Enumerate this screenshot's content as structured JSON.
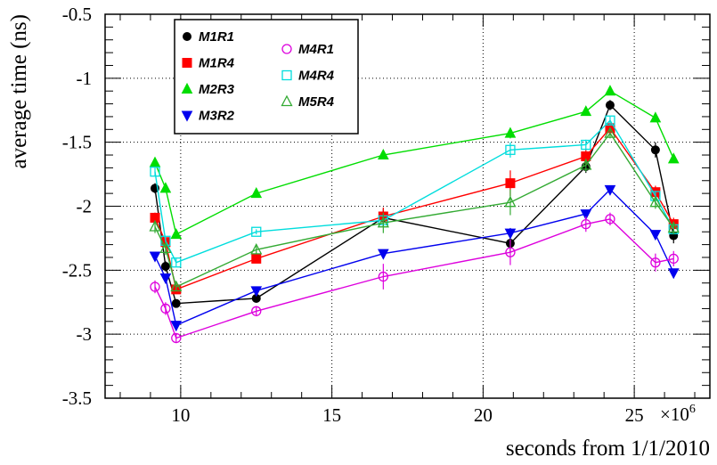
{
  "chart_data": {
    "type": "line",
    "title": "",
    "xlabel": "seconds from 1/1/2010",
    "ylabel": "average time (ns)",
    "x_exponent_label": "×10",
    "x_exponent_power": "6",
    "x_scale": 1000000,
    "xlim": [
      7500000,
      27500000
    ],
    "ylim": [
      -3.5,
      -0.5
    ],
    "x_ticks": [
      10,
      15,
      20,
      25
    ],
    "y_ticks": [
      -3.5,
      -3,
      -2.5,
      -2,
      -1.5,
      -1,
      -0.5
    ],
    "y_tick_labels": [
      "-3.5",
      "-3",
      "-2.5",
      "-2",
      "-1.5",
      "-1",
      "-0.5"
    ],
    "grid": true,
    "x": [
      9150000,
      9500000,
      9850000,
      12500000,
      16700000,
      20900000,
      23400000,
      24200000,
      25700000,
      26300000
    ],
    "series": [
      {
        "name": "M1R1",
        "color": "#000000",
        "marker": "circle-filled",
        "values": [
          -1.86,
          -2.47,
          -2.76,
          -2.72,
          -2.09,
          -2.29,
          -1.69,
          -1.21,
          -1.56,
          -2.23
        ],
        "errors": [
          0.04,
          0.04,
          0.03,
          0.03,
          0.07,
          0.07,
          0.05,
          0.04,
          0.06,
          0.06
        ]
      },
      {
        "name": "M1R4",
        "color": "#ff0000",
        "marker": "square-filled",
        "values": [
          -2.09,
          -2.28,
          -2.65,
          -2.41,
          -2.08,
          -1.82,
          -1.61,
          -1.39,
          -1.89,
          -2.14
        ],
        "errors": [
          0.04,
          0.04,
          0.03,
          0.03,
          0.07,
          0.1,
          0.06,
          0.05,
          0.05,
          0.05
        ]
      },
      {
        "name": "M2R3",
        "color": "#00dd00",
        "marker": "triangle-up-filled",
        "values": [
          -1.66,
          -1.86,
          -2.22,
          -1.9,
          -1.6,
          -1.43,
          -1.26,
          -1.1,
          -1.31,
          -1.63
        ],
        "errors": [
          0.03,
          0.03,
          0.03,
          0.02,
          0.03,
          0.04,
          0.03,
          0.02,
          0.03,
          0.03
        ]
      },
      {
        "name": "M3R2",
        "color": "#0000ee",
        "marker": "triangle-down-filled",
        "values": [
          -2.39,
          -2.56,
          -2.93,
          -2.66,
          -2.37,
          -2.21,
          -2.06,
          -1.87,
          -2.22,
          -2.52
        ],
        "errors": [
          0.03,
          0.03,
          0.03,
          0.02,
          0.03,
          0.04,
          0.03,
          0.02,
          0.03,
          0.03
        ]
      },
      {
        "name": "M4R1",
        "color": "#dd00dd",
        "marker": "circle-open",
        "values": [
          -2.63,
          -2.8,
          -3.03,
          -2.82,
          -2.55,
          -2.36,
          -2.14,
          -2.1,
          -2.44,
          -2.41
        ],
        "errors": [
          0.05,
          0.05,
          0.04,
          0.04,
          0.1,
          0.1,
          0.06,
          0.05,
          0.07,
          0.06
        ]
      },
      {
        "name": "M4R4",
        "color": "#00dddd",
        "marker": "square-open",
        "values": [
          -1.73,
          -2.27,
          -2.44,
          -2.2,
          -2.11,
          -1.56,
          -1.52,
          -1.33,
          -1.92,
          -2.18
        ],
        "errors": [
          0.03,
          0.03,
          0.03,
          0.02,
          0.04,
          0.06,
          0.04,
          0.03,
          0.04,
          0.04
        ]
      },
      {
        "name": "M5R4",
        "color": "#33aa33",
        "marker": "triangle-up-open",
        "values": [
          -2.16,
          -2.33,
          -2.63,
          -2.34,
          -2.13,
          -1.97,
          -1.68,
          -1.43,
          -1.97,
          -2.17
        ],
        "errors": [
          0.05,
          0.05,
          0.03,
          0.03,
          0.08,
          0.1,
          0.05,
          0.04,
          0.05,
          0.05
        ]
      }
    ],
    "legend": {
      "placement": "top-left",
      "left_column": [
        "M1R1",
        "M1R4",
        "M2R3",
        "M3R2"
      ],
      "right_column": [
        "M4R1",
        "M4R4",
        "M5R4"
      ]
    }
  }
}
